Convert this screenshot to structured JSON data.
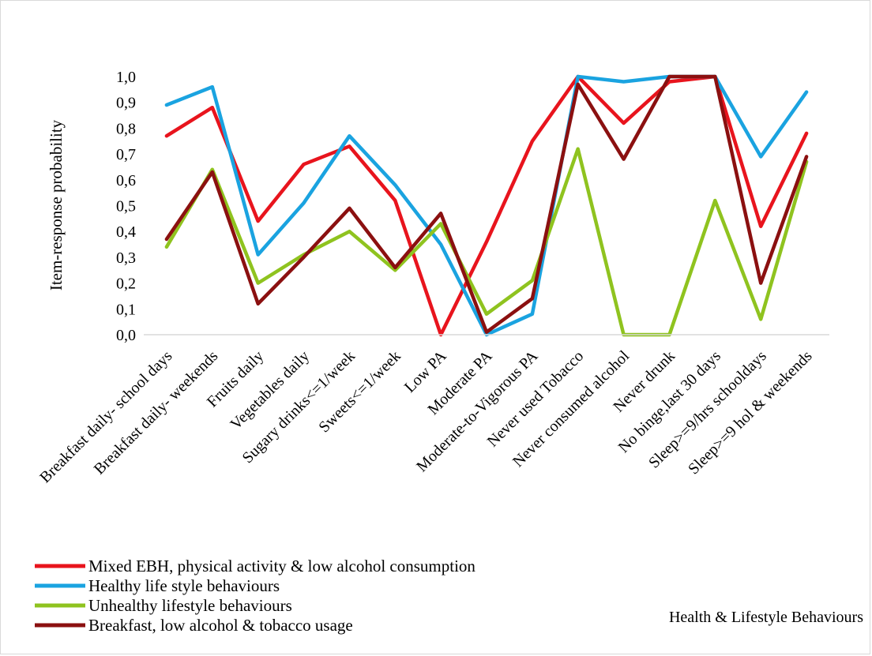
{
  "colors": {
    "series": [
      "#e8141d",
      "#1aa3e0",
      "#8fc31f",
      "#8b1010"
    ],
    "axis": "#d9d9d9"
  },
  "chart_data": {
    "type": "line",
    "title": "",
    "xlabel": "Health & Lifestyle Behaviours",
    "ylabel": "Item-response probability",
    "ylim": [
      0,
      1
    ],
    "yticks": [
      0.0,
      0.1,
      0.2,
      0.3,
      0.4,
      0.5,
      0.6,
      0.7,
      0.8,
      0.9,
      1.0
    ],
    "ytick_labels": [
      "0,0",
      "0,1",
      "0,2",
      "0,3",
      "0,4",
      "0,5",
      "0,6",
      "0,7",
      "0,8",
      "0,9",
      "1,0"
    ],
    "grid": false,
    "legend_position": "bottom-left",
    "categories": [
      "Breakfast daily- school days",
      "Breakfast daily- weekends",
      "Fruits daily",
      "Vegetables daily",
      "Sugary drinks<=1/week",
      "Sweets<=1/week",
      "Low PA",
      "Moderate PA",
      "Moderate-to-Vigorous PA",
      "Never used Tobacco",
      "Never consumed alcohol",
      "Never drunk",
      "No binge,last 30 days",
      "Sleep>=9/hrs schooldays",
      "Sleep>=9 hol & weekends"
    ],
    "series": [
      {
        "name": "Mixed EBH, physical activity & low alcohol consumption",
        "values": [
          0.77,
          0.88,
          0.44,
          0.66,
          0.73,
          0.52,
          0.0,
          0.36,
          0.75,
          1.0,
          0.82,
          0.98,
          1.0,
          0.42,
          0.78
        ]
      },
      {
        "name": "Healthy life style behaviours",
        "values": [
          0.89,
          0.96,
          0.31,
          0.51,
          0.77,
          0.58,
          0.35,
          0.0,
          0.08,
          1.0,
          0.98,
          1.0,
          1.0,
          0.69,
          0.94
        ]
      },
      {
        "name": "Unhealthy lifestyle behaviours",
        "values": [
          0.34,
          0.64,
          0.2,
          0.31,
          0.4,
          0.25,
          0.43,
          0.08,
          0.21,
          0.72,
          0.0,
          0.0,
          0.52,
          0.06,
          0.67
        ]
      },
      {
        "name": "Breakfast, low alcohol & tobacco usage",
        "values": [
          0.37,
          0.63,
          0.12,
          0.3,
          0.49,
          0.26,
          0.47,
          0.01,
          0.14,
          0.97,
          0.68,
          1.0,
          1.0,
          0.2,
          0.69
        ]
      }
    ]
  }
}
